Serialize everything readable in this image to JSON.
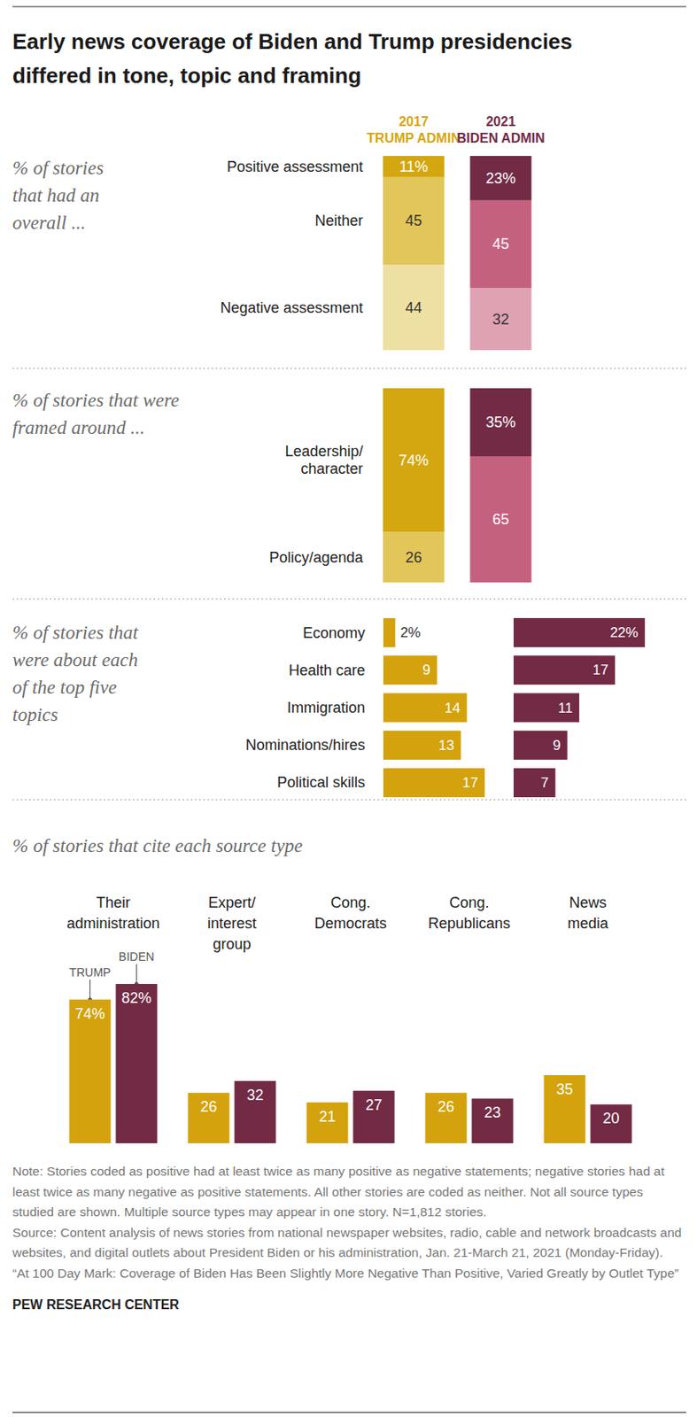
{
  "title": "Early news coverage of Biden and Trump presidencies\ndiffered in tone, topic and framing",
  "chart_data": [
    {
      "type": "bar",
      "stacked": true,
      "subtitle": "% of stories\nthat had an\noverall ...",
      "categories": [
        "2017\nTRUMP ADMIN",
        "2021\nBIDEN ADMIN"
      ],
      "ylim": [
        0,
        100
      ],
      "tick_labels": "x",
      "data_labels": true,
      "series": [
        {
          "name": "Positive assessment",
          "values": [
            11,
            23
          ],
          "value_labels": [
            "11%",
            "23%"
          ],
          "colors": [
            "#d4a60f",
            "#722a45"
          ]
        },
        {
          "name": "Neither",
          "values": [
            45,
            45
          ],
          "colors": [
            "#e3c659",
            "#c4617f"
          ]
        },
        {
          "name": "Negative assessment",
          "values": [
            44,
            32
          ],
          "colors": [
            "#eee0a2",
            "#dea2b3"
          ]
        }
      ]
    },
    {
      "type": "bar",
      "stacked": true,
      "subtitle": "% of stories that were\nframed around ...",
      "categories": [
        null,
        null
      ],
      "ylim": [
        0,
        100
      ],
      "tick_labels": false,
      "data_labels": true,
      "series": [
        {
          "name": "Leadership/\ncharacter",
          "values": [
            74,
            35
          ],
          "value_labels": [
            "74%",
            "35%"
          ],
          "colors": [
            "#d4a60f",
            "#722a45"
          ]
        },
        {
          "name": "Policy/agenda",
          "values": [
            26,
            65
          ],
          "colors": [
            "#e3c659",
            "#c4617f"
          ]
        }
      ]
    },
    {
      "type": "bar",
      "orientation": "horizontal",
      "subtitle": "% of stories that\nwere about each\nof the top five\ntopics",
      "categories": [
        "Economy",
        "Health care",
        "Immigration",
        "Nominations/hires",
        "Political skills"
      ],
      "xlim": [
        0,
        17
      ],
      "tick_labels": "y",
      "data_labels": true,
      "series": [
        {
          "color": "#d4a20c",
          "values": [
            2,
            9,
            14,
            13,
            17
          ],
          "value_labels": [
            "2%",
            "9",
            "14",
            "13",
            "17"
          ]
        }
      ]
    },
    {
      "type": "bar",
      "orientation": "horizontal",
      "categories": [
        null,
        null,
        null,
        null,
        null
      ],
      "xlim": [
        0,
        22
      ],
      "tick_labels": false,
      "data_labels": true,
      "series": [
        {
          "color": "#722a45",
          "values": [
            22,
            17,
            11,
            9,
            7
          ],
          "value_labels": [
            "22%",
            "17",
            "11",
            "9",
            "7"
          ]
        }
      ]
    },
    {
      "type": "bar",
      "subtitle": "% of stories that cite each source type",
      "categories": [
        "Their\nadministration",
        "Expert/\ninterest\ngroup",
        "Cong.\nDemocrats",
        "Cong.\nRepublicans",
        "News\nmedia"
      ],
      "ylim": [
        0,
        82
      ],
      "tick_labels": "x",
      "data_labels": true,
      "series": [
        {
          "name": "TRUMP",
          "color": "#d4a20c",
          "values": [
            74,
            26,
            21,
            26,
            35
          ],
          "value_labels": [
            "74%",
            "26",
            "21",
            "26",
            "35"
          ]
        },
        {
          "name": "BIDEN",
          "color": "#722a45",
          "values": [
            82,
            32,
            27,
            23,
            20
          ],
          "value_labels": [
            "82%",
            "32",
            "27",
            "23",
            "20"
          ]
        }
      ]
    }
  ],
  "note": "Note: Stories coded as positive had at least twice as many positive as negative statements; negative stories had at least twice as many negative as positive statements. All other stories are coded as neither. Not all source types studied are shown. Multiple source types may appear in one story. N=1,812 stories.",
  "source": "Source: Content analysis of news stories from national newspaper websites, radio, cable and network broadcasts and websites, and digital outlets about President Biden or his administration, Jan. 21-March 21, 2021 (Monday-Friday).",
  "report_title": "“At 100 Day Mark: Coverage of Biden Has Been Slightly More Negative Than Positive, Varied Greatly by Outlet Type”",
  "credit": "PEW RESEARCH CENTER"
}
